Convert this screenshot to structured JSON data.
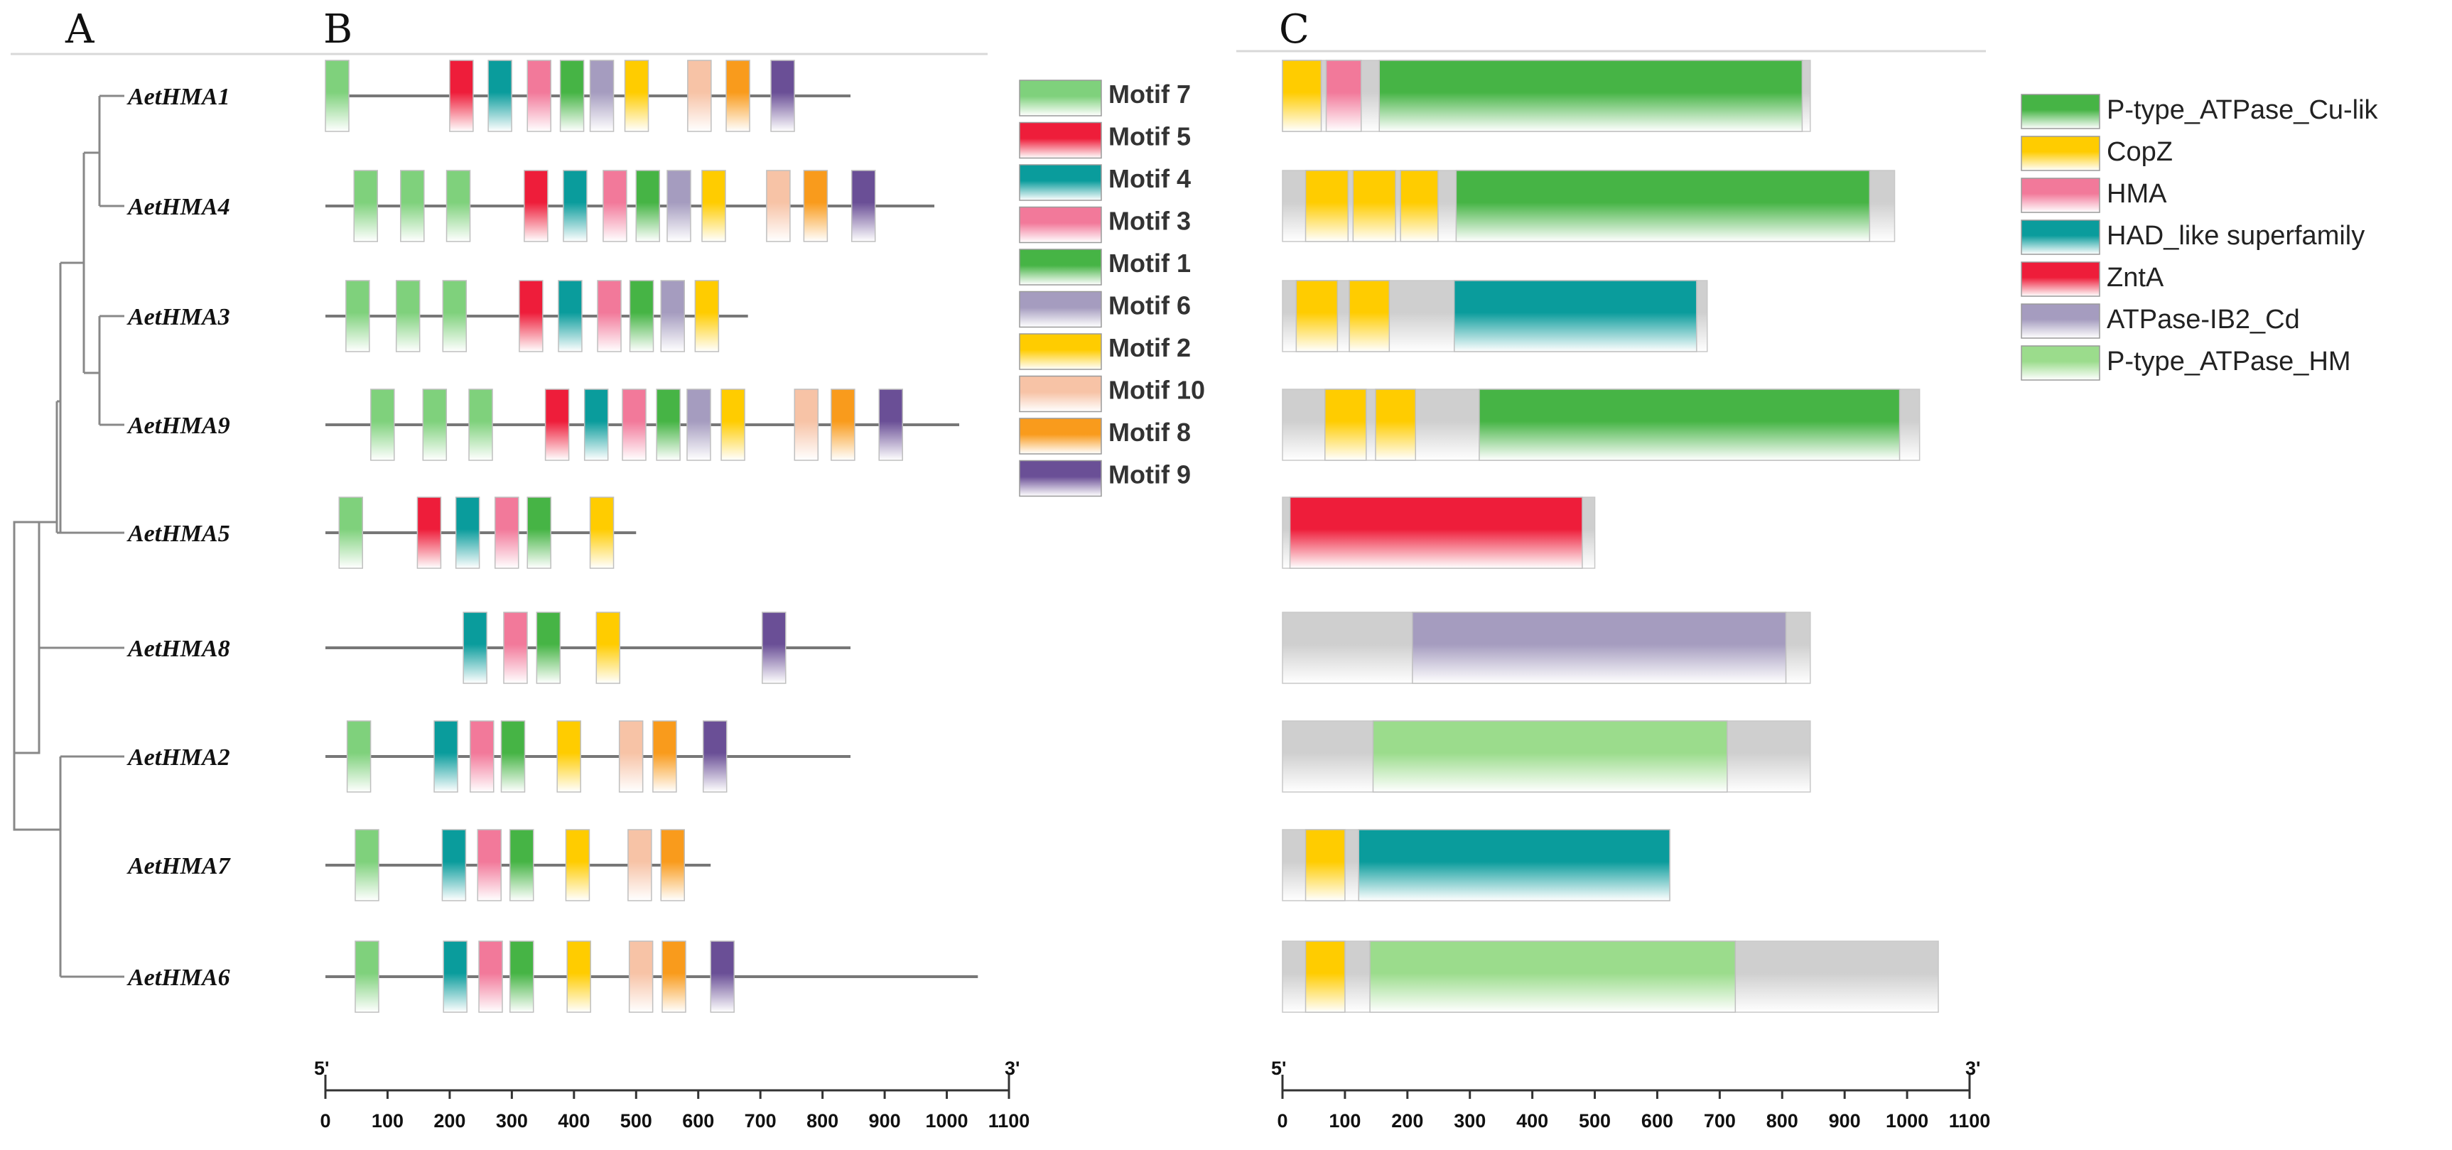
{
  "panels": {
    "a": "A",
    "b": "B",
    "c": "C"
  },
  "scale": {
    "start_label": "5'",
    "end_label": "3'",
    "ticks": [
      0,
      100,
      200,
      300,
      400,
      500,
      600,
      700,
      800,
      900,
      1000,
      1100
    ],
    "max": 1100
  },
  "motif_legend": [
    {
      "key": "m7",
      "label": "Motif 7",
      "color": "#7fd17c"
    },
    {
      "key": "m5",
      "label": "Motif 5",
      "color": "#ee1d3a"
    },
    {
      "key": "m4",
      "label": "Motif 4",
      "color": "#0a9c9c"
    },
    {
      "key": "m3",
      "label": "Motif 3",
      "color": "#f2799a"
    },
    {
      "key": "m1",
      "label": "Motif 1",
      "color": "#46b445"
    },
    {
      "key": "m6",
      "label": "Motif 6",
      "color": "#a59cbf"
    },
    {
      "key": "m2",
      "label": "Motif 2",
      "color": "#ffcc00"
    },
    {
      "key": "m10",
      "label": "Motif 10",
      "color": "#f7c3a6"
    },
    {
      "key": "m8",
      "label": "Motif 8",
      "color": "#f99b1c"
    },
    {
      "key": "m9",
      "label": "Motif 9",
      "color": "#6a4f96"
    }
  ],
  "domain_legend": [
    {
      "key": "ptcu",
      "label": "P-type_ATPase_Cu-lik",
      "color": "#46b445"
    },
    {
      "key": "copz",
      "label": "CopZ",
      "color": "#ffcc00"
    },
    {
      "key": "hma",
      "label": "HMA",
      "color": "#f2799a"
    },
    {
      "key": "had",
      "label": "HAD_like superfamily",
      "color": "#0a9c9c"
    },
    {
      "key": "znta",
      "label": "ZntA",
      "color": "#ee1d3a"
    },
    {
      "key": "ib2",
      "label": "ATPase-IB2_Cd",
      "color": "#a59cbf"
    },
    {
      "key": "pthm",
      "label": "P-type_ATPase_HM",
      "color": "#9bdc8c"
    }
  ],
  "genes": [
    {
      "name": "AetHMA1",
      "length": 845,
      "motifs": [
        [
          "m7",
          0
        ],
        [
          "m5",
          200
        ],
        [
          "m4",
          262
        ],
        [
          "m3",
          325
        ],
        [
          "m1",
          378
        ],
        [
          "m6",
          426
        ],
        [
          "m2",
          482
        ],
        [
          "m10",
          583
        ],
        [
          "m8",
          645
        ],
        [
          "m9",
          717
        ]
      ],
      "domains": [
        [
          "copz",
          0,
          62
        ],
        [
          "hma",
          70,
          126
        ],
        [
          "ptcu",
          155,
          832
        ]
      ]
    },
    {
      "name": "AetHMA4",
      "length": 980,
      "motifs": [
        [
          "m7",
          46
        ],
        [
          "m7",
          121
        ],
        [
          "m7",
          195
        ],
        [
          "m5",
          320
        ],
        [
          "m4",
          383
        ],
        [
          "m3",
          447
        ],
        [
          "m1",
          500
        ],
        [
          "m6",
          550
        ],
        [
          "m2",
          606
        ],
        [
          "m10",
          710
        ],
        [
          "m8",
          770
        ],
        [
          "m9",
          847
        ]
      ],
      "domains": [
        [
          "copz",
          37,
          105
        ],
        [
          "copz",
          113,
          181
        ],
        [
          "copz",
          189,
          249
        ],
        [
          "ptcu",
          278,
          940
        ]
      ]
    },
    {
      "name": "AetHMA3",
      "length": 680,
      "motifs": [
        [
          "m7",
          33
        ],
        [
          "m7",
          114
        ],
        [
          "m7",
          189
        ],
        [
          "m5",
          312
        ],
        [
          "m4",
          375
        ],
        [
          "m3",
          438
        ],
        [
          "m1",
          490
        ],
        [
          "m6",
          540
        ],
        [
          "m2",
          595
        ]
      ],
      "domains": [
        [
          "copz",
          22,
          88
        ],
        [
          "copz",
          107,
          171
        ],
        [
          "had",
          275,
          663
        ]
      ]
    },
    {
      "name": "AetHMA9",
      "length": 1020,
      "motifs": [
        [
          "m7",
          73
        ],
        [
          "m7",
          157
        ],
        [
          "m7",
          231
        ],
        [
          "m5",
          354
        ],
        [
          "m4",
          417
        ],
        [
          "m3",
          478
        ],
        [
          "m1",
          533
        ],
        [
          "m6",
          582
        ],
        [
          "m2",
          637
        ],
        [
          "m10",
          755
        ],
        [
          "m8",
          814
        ],
        [
          "m9",
          891
        ]
      ],
      "domains": [
        [
          "copz",
          68,
          134
        ],
        [
          "copz",
          149,
          213
        ],
        [
          "ptcu",
          315,
          988
        ]
      ]
    },
    {
      "name": "AetHMA5",
      "length": 500,
      "motifs": [
        [
          "m7",
          22
        ],
        [
          "m5",
          148
        ],
        [
          "m4",
          210
        ],
        [
          "m3",
          273
        ],
        [
          "m1",
          325
        ],
        [
          "m2",
          426
        ]
      ],
      "domains": [
        [
          "znta",
          12,
          480
        ]
      ]
    },
    {
      "name": "AetHMA8",
      "length": 845,
      "motifs": [
        [
          "m4",
          222
        ],
        [
          "m3",
          287
        ],
        [
          "m1",
          340
        ],
        [
          "m2",
          436
        ],
        [
          "m9",
          703
        ]
      ],
      "domains": [
        [
          "ib2",
          208,
          806
        ]
      ]
    },
    {
      "name": "AetHMA2",
      "length": 845,
      "motifs": [
        [
          "m7",
          35
        ],
        [
          "m4",
          175
        ],
        [
          "m3",
          233
        ],
        [
          "m1",
          283
        ],
        [
          "m2",
          373
        ],
        [
          "m10",
          473
        ],
        [
          "m8",
          527
        ],
        [
          "m9",
          608
        ]
      ],
      "domains": [
        [
          "pthm",
          145,
          712
        ]
      ]
    },
    {
      "name": "AetHMA7",
      "length": 620,
      "motifs": [
        [
          "m7",
          48
        ],
        [
          "m4",
          188
        ],
        [
          "m3",
          245
        ],
        [
          "m1",
          297
        ],
        [
          "m2",
          387
        ],
        [
          "m10",
          487
        ],
        [
          "m8",
          540
        ]
      ],
      "domains": [
        [
          "copz",
          37,
          100
        ],
        [
          "had",
          122,
          620
        ]
      ]
    },
    {
      "name": "AetHMA6",
      "length": 1050,
      "motifs": [
        [
          "m7",
          48
        ],
        [
          "m4",
          190
        ],
        [
          "m3",
          247
        ],
        [
          "m1",
          297
        ],
        [
          "m2",
          389
        ],
        [
          "m10",
          489
        ],
        [
          "m8",
          542
        ],
        [
          "m9",
          620
        ]
      ],
      "domains": [
        [
          "copz",
          37,
          100
        ],
        [
          "pthm",
          140,
          725
        ]
      ]
    }
  ]
}
